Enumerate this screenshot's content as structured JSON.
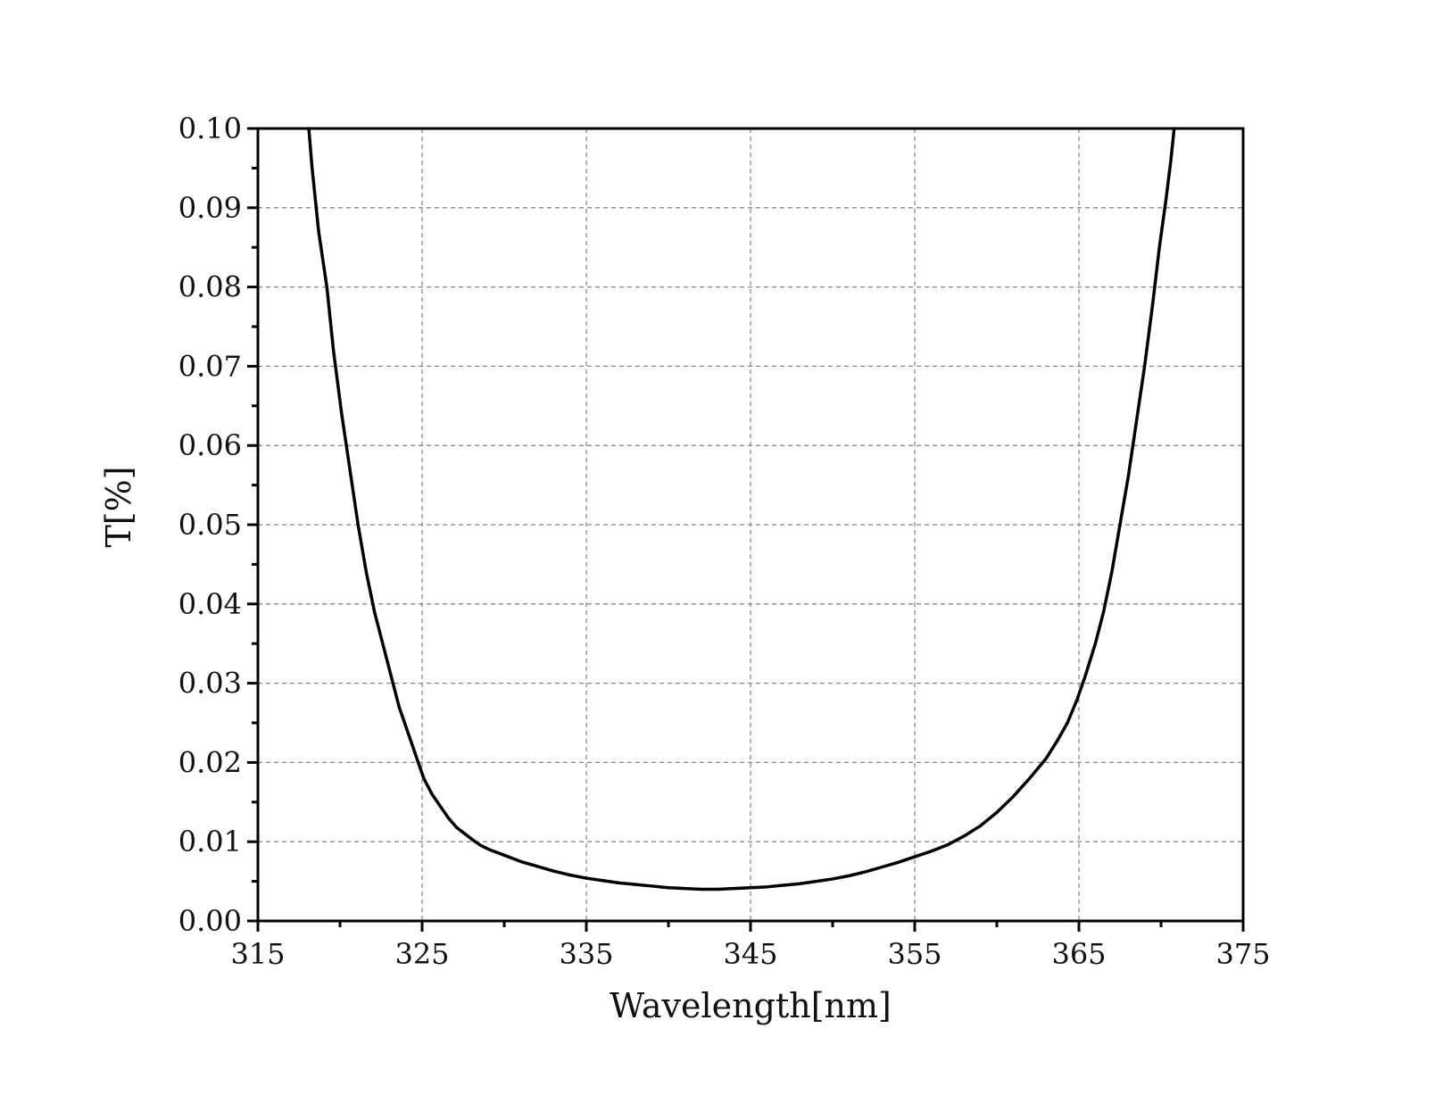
{
  "chart_data": {
    "type": "line",
    "xlabel": "Wavelength[nm]",
    "ylabel": "T[%]",
    "xlim": [
      315,
      375
    ],
    "ylim": [
      0,
      0.1
    ],
    "x_ticks": [
      315,
      325,
      335,
      345,
      355,
      365,
      375
    ],
    "x_tick_labels": [
      "315",
      "325",
      "335",
      "345",
      "355",
      "365",
      "375"
    ],
    "y_ticks": [
      0,
      0.01,
      0.02,
      0.03,
      0.04,
      0.05,
      0.06,
      0.07,
      0.08,
      0.09,
      0.1
    ],
    "y_tick_labels": [
      "0.00",
      "0.01",
      "0.02",
      "0.03",
      "0.04",
      "0.05",
      "0.06",
      "0.07",
      "0.08",
      "0.09",
      "0.10"
    ],
    "grid": true,
    "legend": "none",
    "series": [
      {
        "color": "#000000",
        "x": [
          318.1,
          318.3,
          318.7,
          319.2,
          319.6,
          320.1,
          320.6,
          321.1,
          321.6,
          322.1,
          322.6,
          323.1,
          323.6,
          324.1,
          324.6,
          325.1,
          325.6,
          326.1,
          326.6,
          327.1,
          327.6,
          328.1,
          328.6,
          329.1,
          330.0,
          331.0,
          332.0,
          333.0,
          334.0,
          335.0,
          336.0,
          337.0,
          338.0,
          339.0,
          340.0,
          341.0,
          342.0,
          343.0,
          344.0,
          345.0,
          346.0,
          347.0,
          348.0,
          349.0,
          350.0,
          351.0,
          352.0,
          353.0,
          354.0,
          355.0,
          356.0,
          357.0,
          358.0,
          359.0,
          360.0,
          361.0,
          362.0,
          363.0,
          363.7,
          364.3,
          364.9,
          365.4,
          366.0,
          366.5,
          367.0,
          367.5,
          368.0,
          368.5,
          369.0,
          369.5,
          369.9,
          370.3,
          370.6,
          370.8
        ],
        "values": [
          0.1,
          0.095,
          0.087,
          0.08,
          0.072,
          0.064,
          0.057,
          0.05,
          0.044,
          0.039,
          0.035,
          0.031,
          0.027,
          0.024,
          0.021,
          0.018,
          0.016,
          0.0145,
          0.013,
          0.0118,
          0.011,
          0.0102,
          0.0095,
          0.009,
          0.0083,
          0.0075,
          0.0069,
          0.0063,
          0.0058,
          0.0054,
          0.0051,
          0.0048,
          0.0046,
          0.0044,
          0.0042,
          0.0041,
          0.004,
          0.004,
          0.0041,
          0.0042,
          0.0043,
          0.0045,
          0.0047,
          0.005,
          0.0053,
          0.0057,
          0.0062,
          0.0068,
          0.0074,
          0.0081,
          0.0088,
          0.0096,
          0.0107,
          0.012,
          0.0137,
          0.0157,
          0.018,
          0.0205,
          0.0228,
          0.025,
          0.028,
          0.031,
          0.035,
          0.039,
          0.044,
          0.05,
          0.056,
          0.063,
          0.07,
          0.078,
          0.085,
          0.091,
          0.096,
          0.1
        ]
      }
    ]
  }
}
